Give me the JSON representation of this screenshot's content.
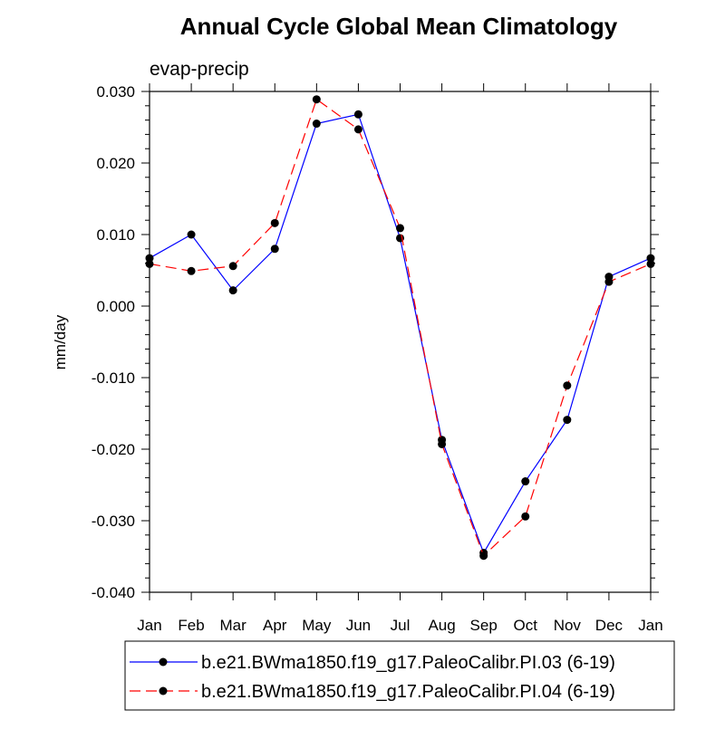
{
  "chart_data": {
    "type": "line",
    "title": "Annual Cycle Global Mean Climatology",
    "subtitle": "evap-precip",
    "xlabel": "",
    "ylabel": "mm/day",
    "categories": [
      "Jan",
      "Feb",
      "Mar",
      "Apr",
      "May",
      "Jun",
      "Jul",
      "Aug",
      "Sep",
      "Oct",
      "Nov",
      "Dec",
      "Jan"
    ],
    "ylim": [
      -0.04,
      0.03
    ],
    "yticks": [
      -0.04,
      -0.03,
      -0.02,
      -0.01,
      0.0,
      0.01,
      0.02,
      0.03
    ],
    "ytick_labels": [
      "-0.040",
      "-0.030",
      "-0.020",
      "-0.010",
      "0.000",
      "0.010",
      "0.020",
      "0.030"
    ],
    "grid": false,
    "legend_position": "bottom",
    "series": [
      {
        "name": "b.e21.BWma1850.f19_g17.PaleoCalibr.PI.03 (6-19)",
        "color": "#0000ff",
        "line_style": "solid",
        "marker": "filled-circle",
        "values": [
          0.0067,
          0.01,
          0.0022,
          0.008,
          0.0255,
          0.0268,
          0.0095,
          -0.0187,
          -0.0345,
          -0.0245,
          -0.0159,
          0.0041,
          0.0067
        ]
      },
      {
        "name": "b.e21.BWma1850.f19_g17.PaleoCalibr.PI.04 (6-19)",
        "color": "#ff0000",
        "line_style": "dashed",
        "marker": "filled-circle",
        "values": [
          0.0059,
          0.0049,
          0.0056,
          0.0116,
          0.0289,
          0.0247,
          0.0109,
          -0.0193,
          -0.0349,
          -0.0294,
          -0.0111,
          0.0034,
          0.0059
        ]
      }
    ]
  }
}
